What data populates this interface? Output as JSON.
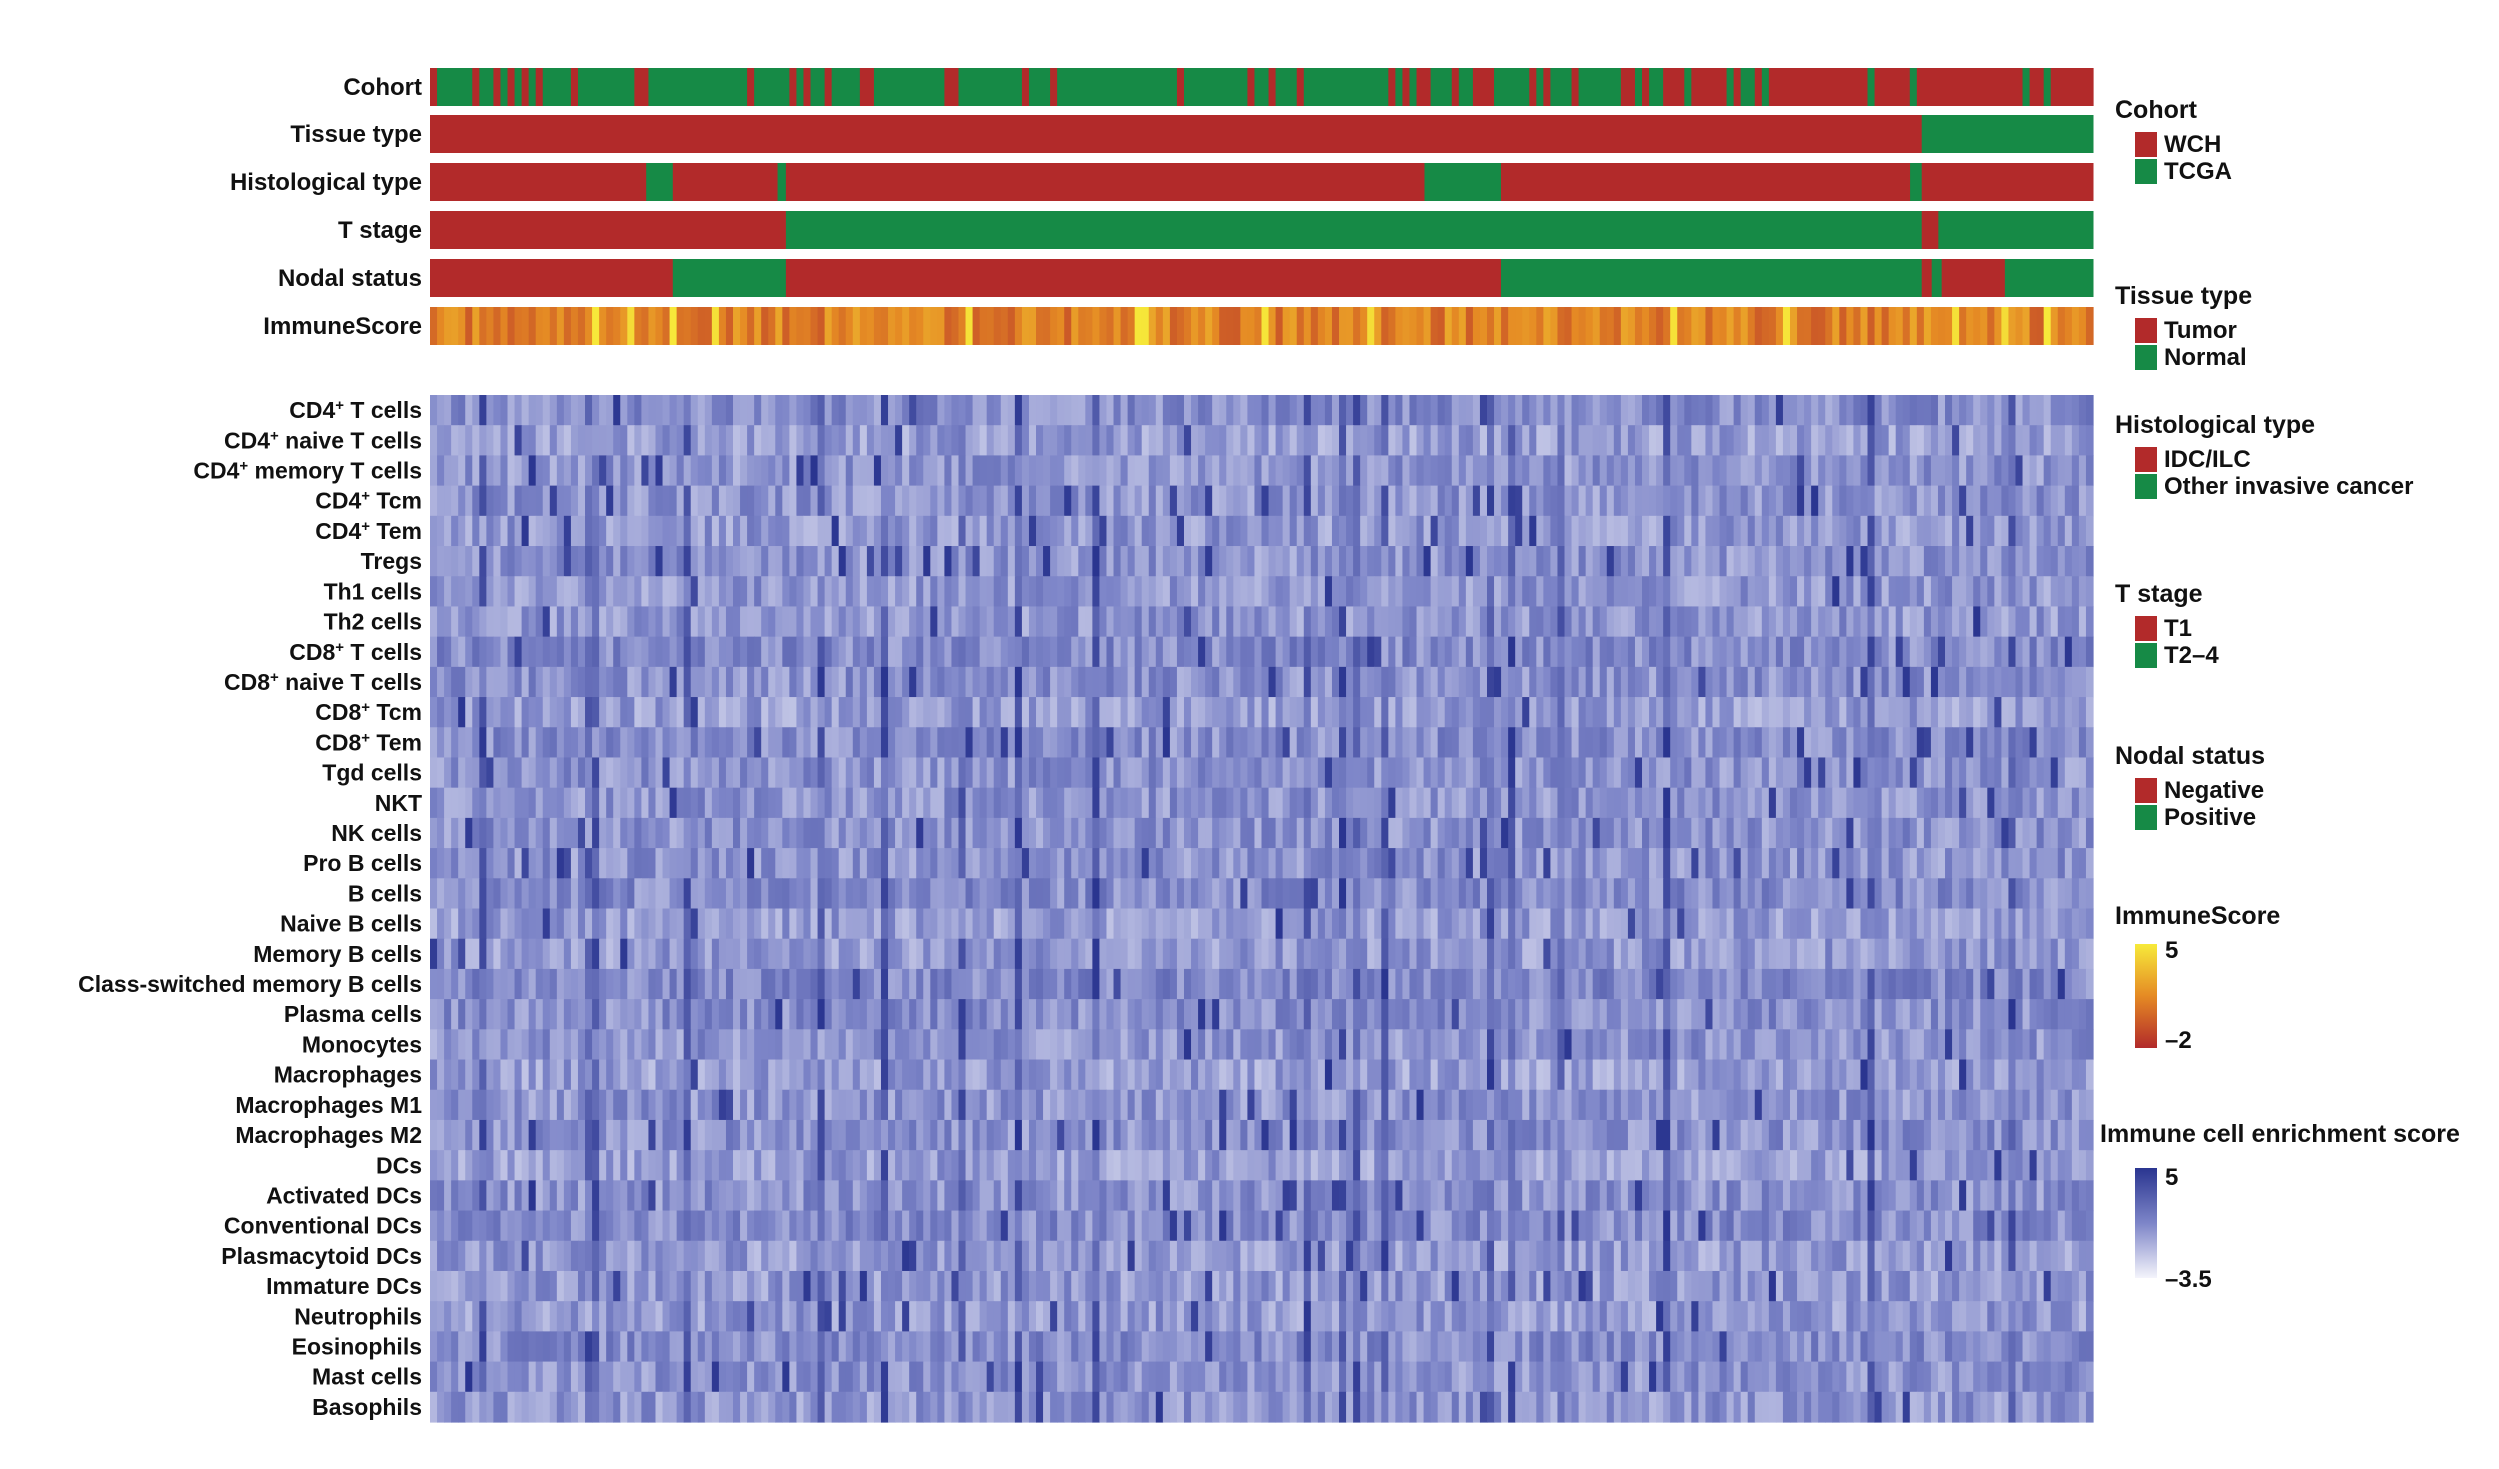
{
  "chart_data": {
    "type": "heatmap",
    "n_samples": 236,
    "annotation_tracks": [
      {
        "label": "Cohort",
        "key": "cohort"
      },
      {
        "label": "Tissue type",
        "key": "tissue"
      },
      {
        "label": "Histological type",
        "key": "histology"
      },
      {
        "label": "T stage",
        "key": "tstage"
      },
      {
        "label": "Nodal status",
        "key": "nodal"
      },
      {
        "label": "ImmuneScore",
        "key": "immunescore"
      }
    ],
    "annotation_segments": {
      "tissue": [
        {
          "from": 0.0,
          "to": 0.897,
          "level": 0
        },
        {
          "from": 0.897,
          "to": 1.0,
          "level": 1
        }
      ],
      "histology": [
        {
          "from": 0.0,
          "to": 0.13,
          "level": 0
        },
        {
          "from": 0.13,
          "to": 0.146,
          "level": 1
        },
        {
          "from": 0.146,
          "to": 0.209,
          "level": 0
        },
        {
          "from": 0.209,
          "to": 0.214,
          "level": 1
        },
        {
          "from": 0.214,
          "to": 0.598,
          "level": 0
        },
        {
          "from": 0.598,
          "to": 0.644,
          "level": 1
        },
        {
          "from": 0.644,
          "to": 0.89,
          "level": 0
        },
        {
          "from": 0.89,
          "to": 0.897,
          "level": 1
        },
        {
          "from": 0.897,
          "to": 1.0,
          "level": 0
        }
      ],
      "tstage": [
        {
          "from": 0.0,
          "to": 0.214,
          "level": 0
        },
        {
          "from": 0.214,
          "to": 0.897,
          "level": 1
        },
        {
          "from": 0.897,
          "to": 0.907,
          "level": 0
        },
        {
          "from": 0.907,
          "to": 1.0,
          "level": 1
        }
      ],
      "nodal": [
        {
          "from": 0.0,
          "to": 0.146,
          "level": 0
        },
        {
          "from": 0.146,
          "to": 0.214,
          "level": 1
        },
        {
          "from": 0.214,
          "to": 0.644,
          "level": 0
        },
        {
          "from": 0.644,
          "to": 0.897,
          "level": 1
        },
        {
          "from": 0.897,
          "to": 0.903,
          "level": 0
        },
        {
          "from": 0.903,
          "to": 0.909,
          "level": 1
        },
        {
          "from": 0.909,
          "to": 0.947,
          "level": 0
        },
        {
          "from": 0.947,
          "to": 1.0,
          "level": 1
        }
      ]
    },
    "cohort_pattern": {
      "tcga_majority_until": 0.74,
      "wch_majority_after": 0.74
    },
    "cell_types": [
      {
        "pre": "CD4",
        "sup": "+",
        "post": " T cells"
      },
      {
        "pre": "CD4",
        "sup": "+",
        "post": " naive T cells"
      },
      {
        "pre": "CD4",
        "sup": "+",
        "post": " memory T cells"
      },
      {
        "pre": "CD4",
        "sup": "+",
        "post": " Tcm"
      },
      {
        "pre": "CD4",
        "sup": "+",
        "post": " Tem"
      },
      {
        "pre": "Tregs",
        "sup": "",
        "post": ""
      },
      {
        "pre": "Th1 cells",
        "sup": "",
        "post": ""
      },
      {
        "pre": "Th2 cells",
        "sup": "",
        "post": ""
      },
      {
        "pre": "CD8",
        "sup": "+",
        "post": " T cells"
      },
      {
        "pre": "CD8",
        "sup": "+",
        "post": " naive T cells"
      },
      {
        "pre": "CD8",
        "sup": "+",
        "post": " Tcm"
      },
      {
        "pre": "CD8",
        "sup": "+",
        "post": " Tem"
      },
      {
        "pre": "Tgd cells",
        "sup": "",
        "post": ""
      },
      {
        "pre": "NKT",
        "sup": "",
        "post": ""
      },
      {
        "pre": "NK cells",
        "sup": "",
        "post": ""
      },
      {
        "pre": "Pro B cells",
        "sup": "",
        "post": ""
      },
      {
        "pre": "B cells",
        "sup": "",
        "post": ""
      },
      {
        "pre": "Naive B cells",
        "sup": "",
        "post": ""
      },
      {
        "pre": "Memory B cells",
        "sup": "",
        "post": ""
      },
      {
        "pre": "Class-switched memory B cells",
        "sup": "",
        "post": ""
      },
      {
        "pre": "Plasma cells",
        "sup": "",
        "post": ""
      },
      {
        "pre": "Monocytes",
        "sup": "",
        "post": ""
      },
      {
        "pre": "Macrophages",
        "sup": "",
        "post": ""
      },
      {
        "pre": "Macrophages M1",
        "sup": "",
        "post": ""
      },
      {
        "pre": "Macrophages M2",
        "sup": "",
        "post": ""
      },
      {
        "pre": "DCs",
        "sup": "",
        "post": ""
      },
      {
        "pre": "Activated DCs",
        "sup": "",
        "post": ""
      },
      {
        "pre": "Conventional DCs",
        "sup": "",
        "post": ""
      },
      {
        "pre": "Plasmacytoid DCs",
        "sup": "",
        "post": ""
      },
      {
        "pre": "Immature DCs",
        "sup": "",
        "post": ""
      },
      {
        "pre": "Neutrophils",
        "sup": "",
        "post": ""
      },
      {
        "pre": "Eosinophils",
        "sup": "",
        "post": ""
      },
      {
        "pre": "Mast cells",
        "sup": "",
        "post": ""
      },
      {
        "pre": "Basophils",
        "sup": "",
        "post": ""
      }
    ],
    "legends": [
      {
        "title": "Cohort",
        "items": [
          {
            "label": "WCH",
            "color": "#b22a2a"
          },
          {
            "label": "TCGA",
            "color": "#168a46"
          }
        ]
      },
      {
        "title": "Tissue type",
        "items": [
          {
            "label": "Tumor",
            "color": "#b22a2a"
          },
          {
            "label": "Normal",
            "color": "#168a46"
          }
        ]
      },
      {
        "title": "Histological type",
        "items": [
          {
            "label": "IDC/ILC",
            "color": "#b22a2a"
          },
          {
            "label": "Other invasive cancer",
            "color": "#168a46"
          }
        ]
      },
      {
        "title": "T stage",
        "items": [
          {
            "label": "T1",
            "color": "#b22a2a"
          },
          {
            "label": "T2–4",
            "color": "#168a46"
          }
        ]
      },
      {
        "title": "Nodal status",
        "items": [
          {
            "label": "Negative",
            "color": "#b22a2a"
          },
          {
            "label": "Positive",
            "color": "#168a46"
          }
        ]
      }
    ],
    "immunescore_scale": {
      "title": "ImmuneScore",
      "max_label": "5",
      "min_label": "–2",
      "max": 5,
      "min": -2,
      "colors": [
        "#f7ea3a",
        "#e58a24",
        "#b22a2a"
      ]
    },
    "enrichment_scale": {
      "title": "Immune cell enrichment score",
      "max_label": "5",
      "min_label": "–3.5",
      "max": 5,
      "min": -3.5,
      "colors": [
        "#2a3590",
        "#7d85c8",
        "#f4f4fb"
      ]
    },
    "colors": {
      "level0": "#b22a2a",
      "level1": "#168a46"
    }
  }
}
